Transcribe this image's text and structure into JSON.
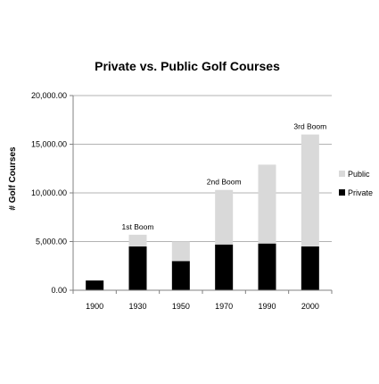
{
  "chart_data": {
    "type": "bar",
    "stacked": true,
    "title": "Private vs. Public Golf Courses",
    "xlabel": "",
    "ylabel": "# Golf Courses",
    "categories": [
      "1900",
      "1930",
      "1950",
      "1970",
      "1990",
      "2000"
    ],
    "series": [
      {
        "name": "Private",
        "color": "#000000",
        "values": [
          1000,
          4500,
          3000,
          4700,
          4800,
          4500
        ]
      },
      {
        "name": "Public",
        "color": "#d9d9d9",
        "values": [
          0,
          1200,
          2000,
          5600,
          8100,
          11500
        ]
      }
    ],
    "ylim": [
      0,
      20000
    ],
    "yticks": [
      0,
      5000,
      10000,
      15000,
      20000
    ],
    "ytick_labels": [
      "0.00",
      "5,000.00",
      "10,000.00",
      "15,000.00",
      "20,000.00"
    ],
    "grid": true,
    "legend_position": "right",
    "legend": [
      {
        "name": "Public",
        "color": "#d9d9d9"
      },
      {
        "name": "Private",
        "color": "#000000"
      }
    ],
    "annotations": [
      {
        "text": "1st Boom",
        "category": "1930"
      },
      {
        "text": "2nd Boom",
        "category": "1970"
      },
      {
        "text": "3rd Boom",
        "category": "2000"
      }
    ]
  }
}
